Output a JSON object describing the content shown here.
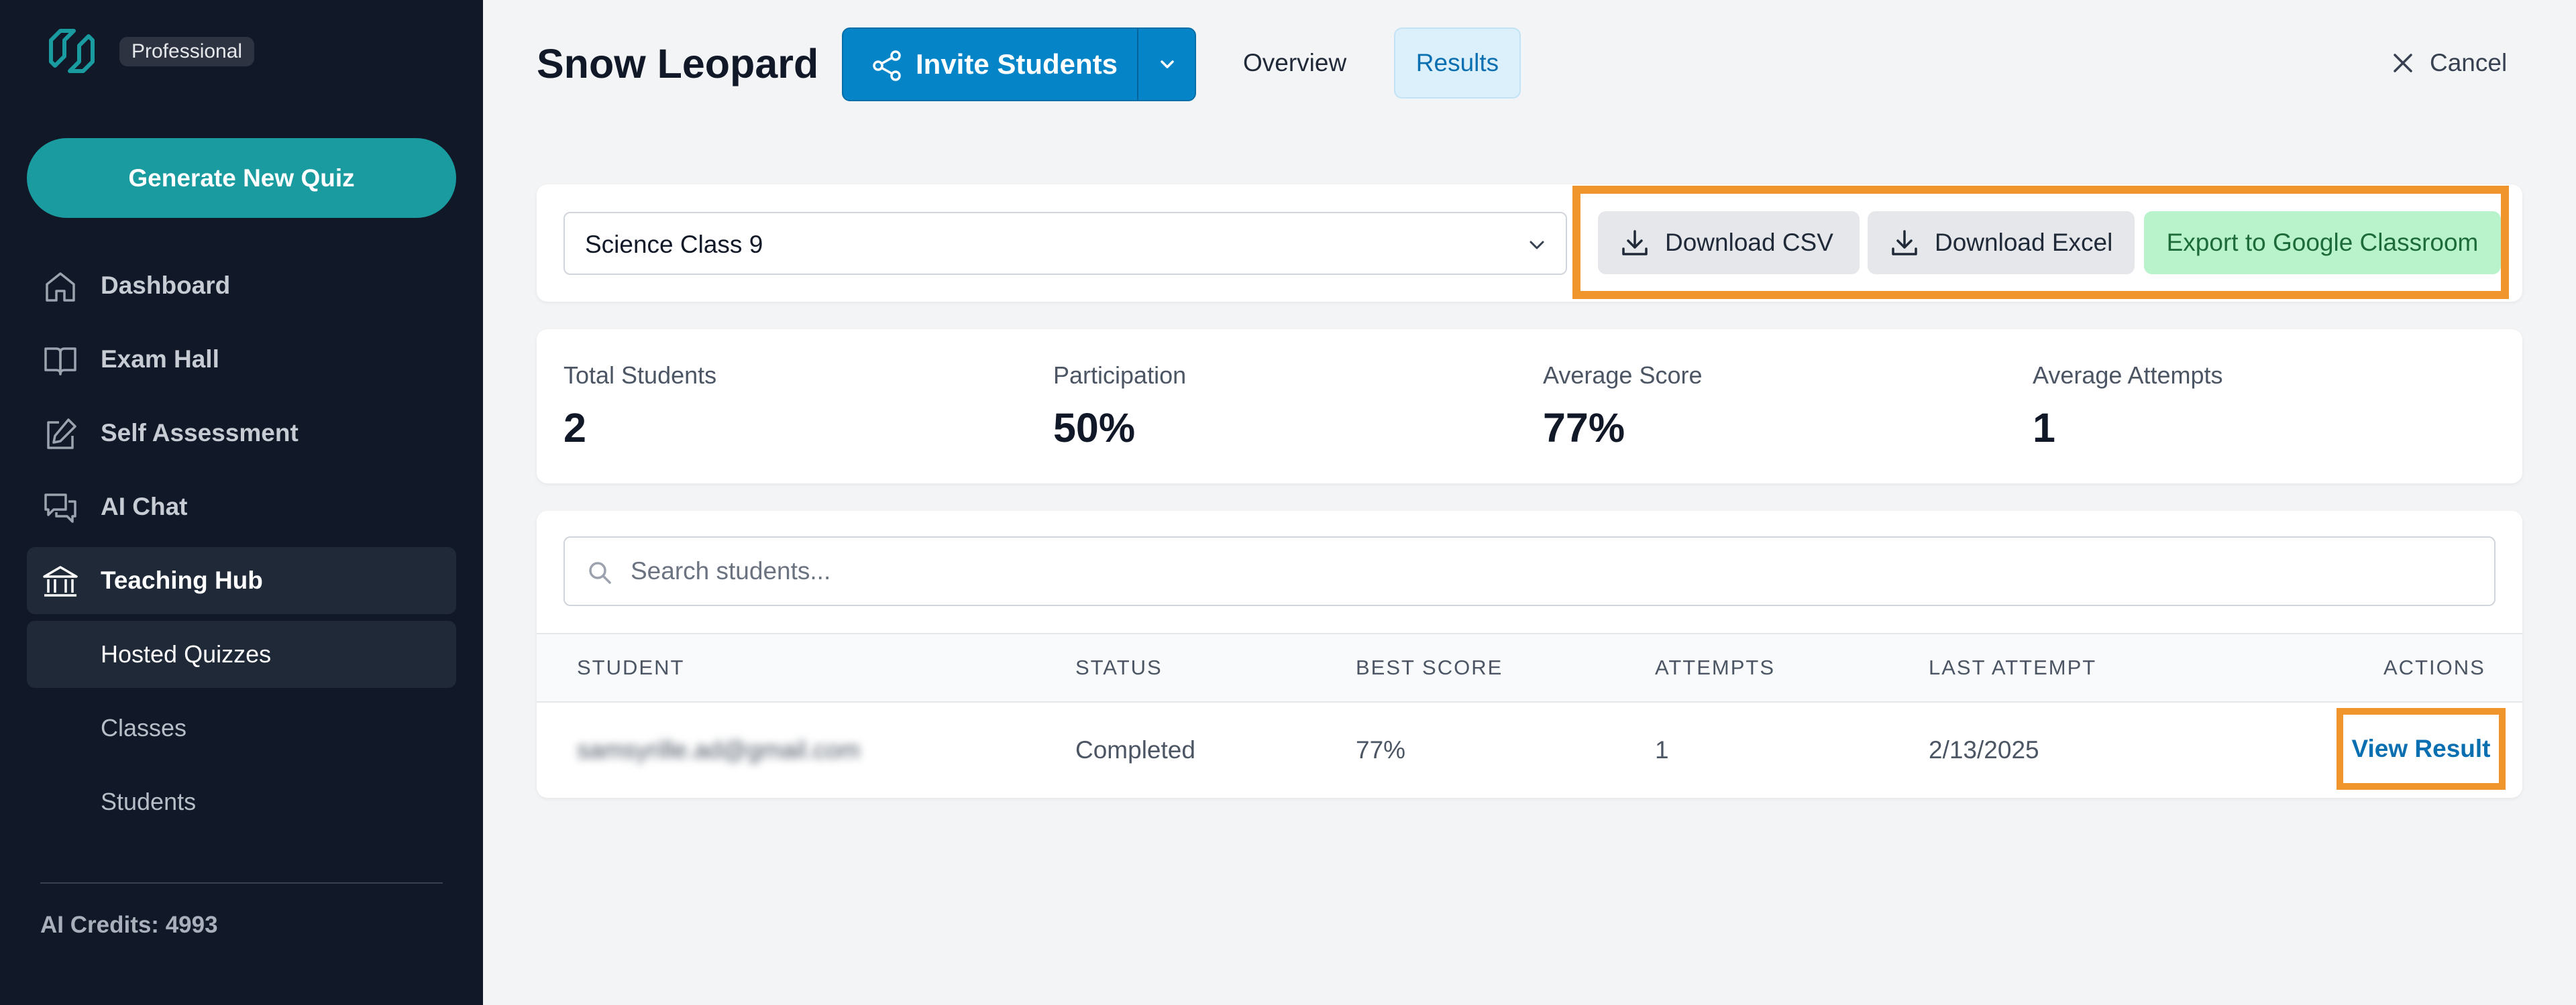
{
  "sidebar": {
    "plan_badge": "Professional",
    "generate_button": "Generate New Quiz",
    "nav": [
      {
        "label": "Dashboard",
        "icon": "home-icon"
      },
      {
        "label": "Exam Hall",
        "icon": "book-icon"
      },
      {
        "label": "Self Assessment",
        "icon": "edit-icon"
      },
      {
        "label": "AI Chat",
        "icon": "chat-icon"
      },
      {
        "label": "Teaching Hub",
        "icon": "building-icon",
        "active": true
      }
    ],
    "subnav": [
      {
        "label": "Hosted Quizzes",
        "active": true
      },
      {
        "label": "Classes"
      },
      {
        "label": "Students"
      }
    ],
    "credits": "AI Credits: 4993"
  },
  "header": {
    "title": "Snow Leopard",
    "invite_button": "Invite Students",
    "tabs": [
      {
        "label": "Overview"
      },
      {
        "label": "Results",
        "active": true
      }
    ],
    "cancel": "Cancel"
  },
  "filter": {
    "class_select": "Science Class 9",
    "download_csv": "Download CSV",
    "download_excel": "Download Excel",
    "export_google": "Export to Google Classroom"
  },
  "stats": [
    {
      "label": "Total Students",
      "value": "2"
    },
    {
      "label": "Participation",
      "value": "50%"
    },
    {
      "label": "Average Score",
      "value": "77%"
    },
    {
      "label": "Average Attempts",
      "value": "1"
    }
  ],
  "table": {
    "search_placeholder": "Search students...",
    "columns": [
      "STUDENT",
      "STATUS",
      "BEST SCORE",
      "ATTEMPTS",
      "LAST ATTEMPT",
      "ACTIONS"
    ],
    "rows": [
      {
        "student": "samsyrille.ad@gmail.com",
        "status": "Completed",
        "best_score": "77%",
        "attempts": "1",
        "last_attempt": "2/13/2025",
        "action": "View Result"
      }
    ]
  },
  "colors": {
    "sidebar_bg": "#111827",
    "brand_teal": "#1a9ba0",
    "primary_blue": "#0584c7",
    "highlight_orange": "#f0952c",
    "export_green_bg": "#b9f3cb"
  }
}
